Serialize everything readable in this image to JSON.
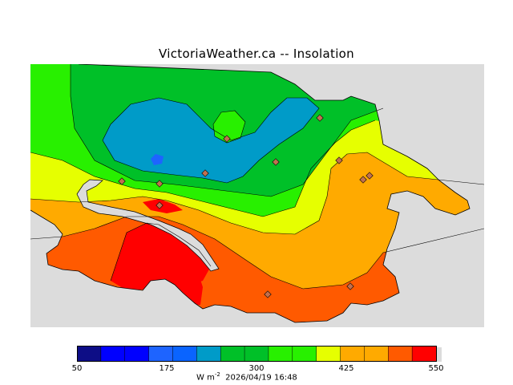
{
  "title": "VictoriaWeather.ca -- Insolation",
  "legend": {
    "colors": [
      "#0d0d86",
      "#0000ff",
      "#0000ff",
      "#1e64ff",
      "#0a64ff",
      "#009bc8",
      "#00c028",
      "#00c028",
      "#28f000",
      "#28f000",
      "#e6ff00",
      "#ffaa00",
      "#ffaa00",
      "#ff5a00",
      "#ff0000"
    ],
    "ticks": [
      {
        "label": "50",
        "value": 50
      },
      {
        "label": "175",
        "value": 175
      },
      {
        "label": "300",
        "value": 300
      },
      {
        "label": "425",
        "value": 425
      },
      {
        "label": "550",
        "value": 550
      }
    ],
    "min": 50,
    "max": 550
  },
  "footer": {
    "units_text": "W m",
    "units_exp": "-2",
    "timestamp": "2026/04/19 16:48"
  },
  "colors": {
    "land_base": "#ff5a00",
    "sea": "#dcdcdc",
    "band_red": "#ff0000",
    "band_orange_red": "#ff5a00",
    "band_orange": "#ffaa00",
    "band_yellow": "#e6ff00",
    "band_green_light": "#28f000",
    "band_green": "#00c028",
    "band_teal": "#009bc8",
    "band_blue": "#1e64ff"
  }
}
